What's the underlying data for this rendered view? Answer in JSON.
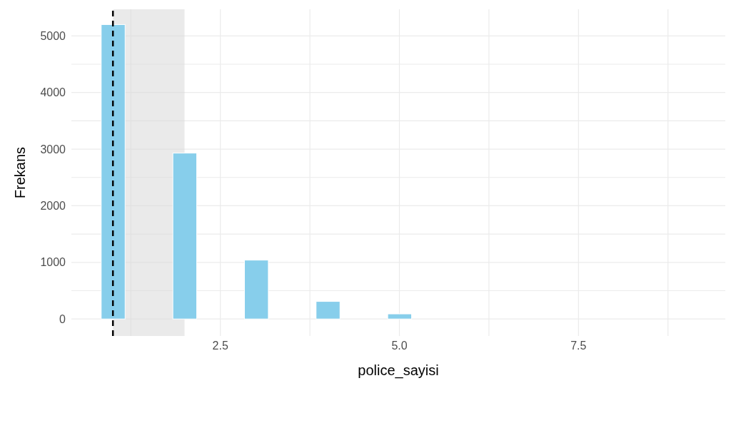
{
  "chart_data": {
    "type": "histogram",
    "xlabel": "police_sayisi",
    "ylabel": "Frekans",
    "bins": [
      0.8333,
      1.1667,
      1.5,
      1.8333,
      2.1667,
      2.5,
      2.8333,
      3.1667,
      3.5,
      3.8333,
      4.1667,
      4.5,
      4.8333,
      5.1667,
      5.5,
      5.8333,
      6.1667,
      6.5,
      6.8333,
      7.1667,
      7.5,
      7.8333,
      8.1667,
      8.5,
      8.8333,
      9.1667
    ],
    "values": [
      5200,
      0,
      0,
      2930,
      0,
      0,
      1040,
      0,
      0,
      310,
      0,
      0,
      90,
      0,
      0,
      0,
      0,
      0,
      0,
      0,
      0,
      0,
      0,
      0,
      0
    ],
    "color": "#87ceeb",
    "xlim": [
      0.42,
      9.55
    ],
    "xticks": [
      {
        "value": 2.5,
        "label": "2.5"
      },
      {
        "value": 5,
        "label": "5.0"
      },
      {
        "value": 7.5,
        "label": "7.5"
      }
    ],
    "ylim": [
      -300,
      5470
    ],
    "yticks": [
      0,
      1000,
      2000,
      3000,
      4000,
      5000
    ],
    "grid": true,
    "bands": [
      {
        "axis": "x",
        "from": 1,
        "to": 2,
        "color": "#d9d9d9"
      }
    ],
    "ref_lines": [
      {
        "axis": "x",
        "value": 1,
        "color": "#000000",
        "line_style": "dashed"
      }
    ]
  }
}
